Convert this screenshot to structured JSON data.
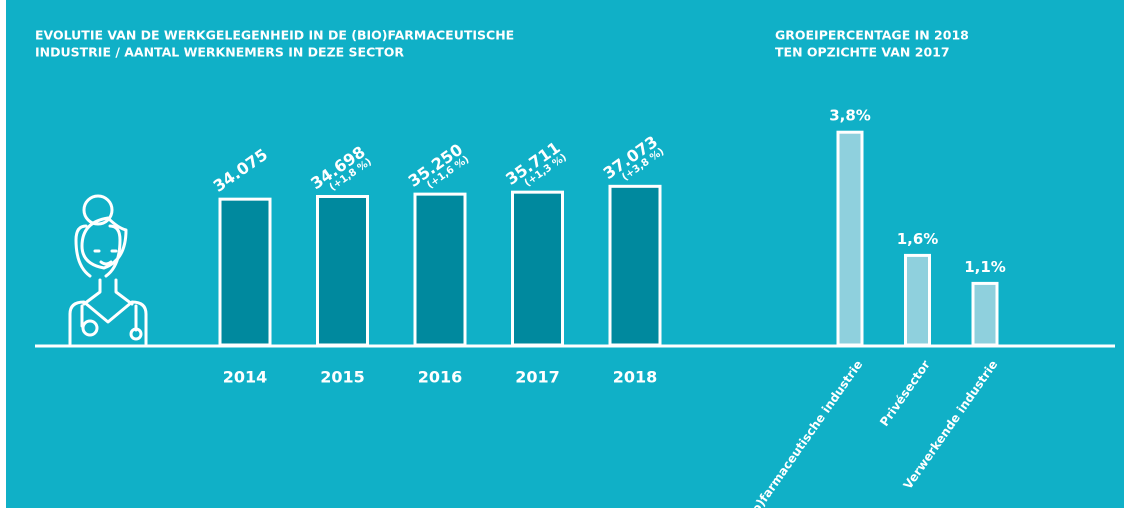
{
  "chart_data": [
    {
      "type": "bar",
      "title": [
        "EVOLUTIE VAN DE WERKGELEGENHEID IN DE (BIO)FARMACEUTISCHE",
        "INDUSTRIE / AANTAL WERKNEMERS IN DEZE SECTOR"
      ],
      "categories": [
        "2014",
        "2015",
        "2016",
        "2017",
        "2018"
      ],
      "values": [
        34075,
        34698,
        35250,
        35711,
        37073
      ],
      "value_labels": [
        "34.075",
        "34.698",
        "35.250",
        "35.711",
        "37.073"
      ],
      "growth_labels": [
        null,
        "(+1,8 %)",
        "(+1,6 %)",
        "(+1,3 %)",
        "(+3,8 %)"
      ],
      "color": "#00899e"
    },
    {
      "type": "bar",
      "title": [
        "GROEIPERCENTAGE IN 2018",
        "TEN OPZICHTE VAN 2017"
      ],
      "categories": [
        "(Bio)farmaceutische industrie",
        "Privésector",
        "Verwerkende industrie"
      ],
      "values": [
        3.8,
        1.6,
        1.1
      ],
      "value_labels": [
        "3,8%",
        "1,6%",
        "1,1%"
      ],
      "color": "#8fd0dd"
    }
  ]
}
